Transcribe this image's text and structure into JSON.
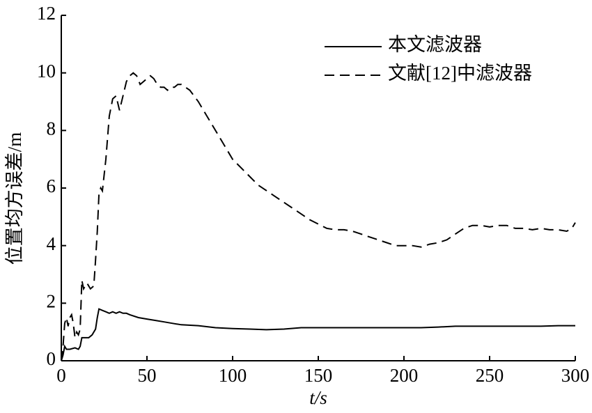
{
  "chart_data": {
    "type": "line",
    "xlabel": "t/s",
    "ylabel": "位置均方误差/m",
    "xlim": [
      0,
      300
    ],
    "xticks": [
      0,
      50,
      100,
      150,
      200,
      250,
      300
    ],
    "ylim": [
      0,
      12
    ],
    "yticks": [
      0,
      2,
      4,
      6,
      8,
      10,
      12
    ],
    "grid": false,
    "legend": "upper right",
    "series": [
      {
        "name": "本文滤波器",
        "color": "#000000",
        "dash": "solid",
        "x": [
          0,
          1,
          2,
          3,
          5,
          8,
          10,
          11,
          12,
          14,
          16,
          18,
          20,
          21,
          22,
          24,
          26,
          28,
          30,
          32,
          34,
          36,
          38,
          40,
          45,
          50,
          55,
          60,
          65,
          70,
          80,
          90,
          100,
          110,
          120,
          130,
          140,
          150,
          160,
          170,
          180,
          190,
          200,
          210,
          220,
          230,
          240,
          250,
          260,
          270,
          280,
          290,
          300
        ],
        "values": [
          0,
          0.2,
          0.5,
          0.4,
          0.4,
          0.45,
          0.4,
          0.5,
          0.8,
          0.8,
          0.8,
          0.9,
          1.1,
          1.5,
          1.8,
          1.75,
          1.7,
          1.65,
          1.7,
          1.65,
          1.7,
          1.65,
          1.65,
          1.6,
          1.5,
          1.45,
          1.4,
          1.35,
          1.3,
          1.25,
          1.22,
          1.15,
          1.12,
          1.1,
          1.08,
          1.1,
          1.15,
          1.15,
          1.15,
          1.15,
          1.15,
          1.15,
          1.15,
          1.15,
          1.17,
          1.2,
          1.2,
          1.2,
          1.2,
          1.2,
          1.2,
          1.22,
          1.22
        ]
      },
      {
        "name": "文献[12]中滤波器",
        "color": "#000000",
        "dash": "dashed",
        "x": [
          0,
          1,
          2,
          3,
          4,
          5,
          6,
          7,
          8,
          9,
          10,
          11,
          12,
          13,
          14,
          15,
          17,
          19,
          20,
          21,
          22,
          23,
          24,
          26,
          28,
          30,
          32,
          34,
          36,
          38,
          40,
          42,
          44,
          46,
          48,
          50,
          52,
          54,
          56,
          58,
          60,
          62,
          64,
          66,
          68,
          70,
          75,
          80,
          85,
          90,
          95,
          100,
          105,
          110,
          115,
          120,
          125,
          130,
          135,
          140,
          145,
          150,
          155,
          160,
          165,
          170,
          175,
          180,
          185,
          190,
          195,
          200,
          205,
          210,
          215,
          220,
          225,
          230,
          235,
          240,
          245,
          250,
          255,
          260,
          265,
          270,
          275,
          280,
          285,
          290,
          295,
          298,
          300
        ],
        "values": [
          0,
          0.5,
          1.3,
          1.5,
          1.2,
          1.5,
          1.6,
          1.3,
          0.8,
          1.0,
          0.9,
          1.1,
          2.8,
          2.5,
          2.6,
          2.7,
          2.5,
          2.6,
          3.5,
          4.5,
          5.8,
          6.0,
          5.9,
          7.0,
          8.5,
          9.1,
          9.2,
          8.7,
          9.2,
          9.7,
          9.9,
          10.0,
          9.9,
          9.6,
          9.7,
          9.8,
          9.9,
          9.8,
          9.6,
          9.5,
          9.5,
          9.4,
          9.5,
          9.5,
          9.6,
          9.6,
          9.4,
          9.0,
          8.5,
          8.0,
          7.5,
          7.0,
          6.7,
          6.4,
          6.1,
          5.9,
          5.7,
          5.5,
          5.3,
          5.1,
          4.9,
          4.75,
          4.6,
          4.55,
          4.55,
          4.5,
          4.4,
          4.3,
          4.2,
          4.1,
          4.0,
          4.0,
          4.0,
          3.95,
          4.05,
          4.1,
          4.2,
          4.4,
          4.6,
          4.7,
          4.7,
          4.65,
          4.7,
          4.7,
          4.6,
          4.6,
          4.55,
          4.6,
          4.55,
          4.55,
          4.5,
          4.6,
          4.8
        ]
      }
    ]
  }
}
